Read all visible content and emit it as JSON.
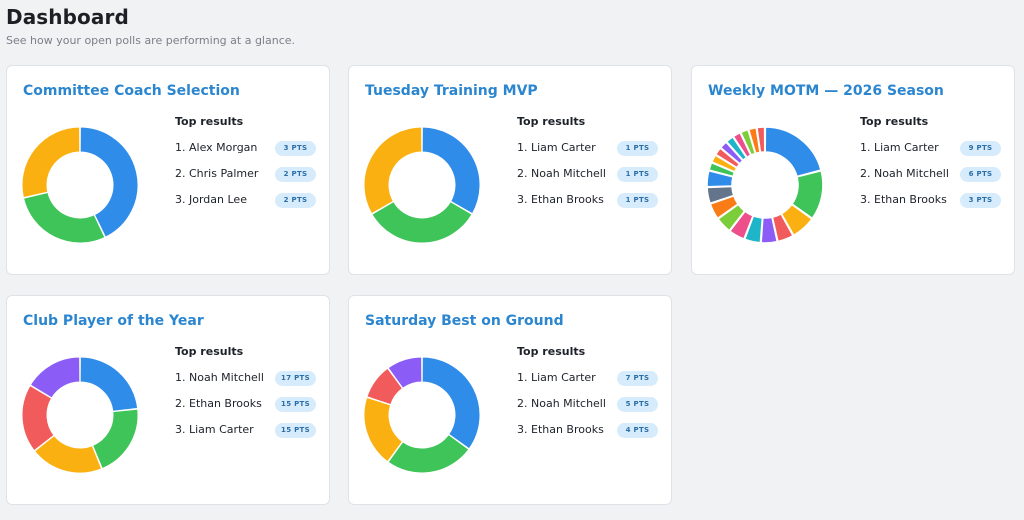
{
  "header": {
    "title": "Dashboard",
    "subtitle": "See how your open polls are performing at a glance."
  },
  "results_heading": "Top results",
  "polls": [
    {
      "title": "Committee Coach Selection",
      "chart_data": {
        "type": "pie",
        "values": [
          3,
          2,
          2
        ],
        "colors": [
          "#2f8ce8",
          "#3ec458",
          "#fbb011"
        ]
      },
      "top": [
        {
          "name": "1. Alex Morgan",
          "points": "3 PTS"
        },
        {
          "name": "2. Chris Palmer",
          "points": "2 PTS"
        },
        {
          "name": "3. Jordan Lee",
          "points": "2 PTS"
        }
      ]
    },
    {
      "title": "Tuesday Training MVP",
      "chart_data": {
        "type": "pie",
        "values": [
          1,
          1,
          1
        ],
        "colors": [
          "#2f8ce8",
          "#3ec458",
          "#fbb011"
        ]
      },
      "top": [
        {
          "name": "1. Liam Carter",
          "points": "1 PTS"
        },
        {
          "name": "2. Noah Mitchell",
          "points": "1 PTS"
        },
        {
          "name": "3. Ethan Brooks",
          "points": "1 PTS"
        }
      ]
    },
    {
      "title": "Weekly MOTM — 2026 Season",
      "chart_data": {
        "type": "pie",
        "values": [
          9,
          6,
          3,
          2,
          2,
          2,
          2,
          2,
          2,
          2,
          2,
          1,
          1,
          1,
          1,
          1,
          1,
          1,
          1,
          1
        ],
        "colors": [
          "#2f8ce8",
          "#3ec458",
          "#fbb011",
          "#f25b5b",
          "#8b5cf6",
          "#1fb5c9",
          "#ec4f8a",
          "#7ccd3a",
          "#f97c16",
          "#64748b",
          "#2f8ce8",
          "#3ec458",
          "#fbb011",
          "#f25b5b",
          "#8b5cf6",
          "#1fb5c9",
          "#ec4f8a",
          "#7ccd3a",
          "#f97c16",
          "#f25b5b"
        ]
      },
      "top": [
        {
          "name": "1. Liam Carter",
          "points": "9 PTS"
        },
        {
          "name": "2. Noah Mitchell",
          "points": "6 PTS"
        },
        {
          "name": "3. Ethan Brooks",
          "points": "3 PTS"
        }
      ]
    },
    {
      "title": "Club Player of the Year",
      "chart_data": {
        "type": "pie",
        "values": [
          17,
          15,
          15,
          14,
          12
        ],
        "colors": [
          "#2f8ce8",
          "#3ec458",
          "#fbb011",
          "#f25b5b",
          "#8b5cf6"
        ]
      },
      "top": [
        {
          "name": "1. Noah Mitchell",
          "points": "17 PTS"
        },
        {
          "name": "2. Ethan Brooks",
          "points": "15 PTS"
        },
        {
          "name": "3. Liam Carter",
          "points": "15 PTS"
        }
      ]
    },
    {
      "title": "Saturday Best on Ground",
      "chart_data": {
        "type": "pie",
        "values": [
          7,
          5,
          4,
          2,
          2
        ],
        "colors": [
          "#2f8ce8",
          "#3ec458",
          "#fbb011",
          "#f25b5b",
          "#8b5cf6"
        ]
      },
      "top": [
        {
          "name": "1. Liam Carter",
          "points": "7 PTS"
        },
        {
          "name": "2. Noah Mitchell",
          "points": "5 PTS"
        },
        {
          "name": "3. Ethan Brooks",
          "points": "4 PTS"
        }
      ]
    }
  ]
}
